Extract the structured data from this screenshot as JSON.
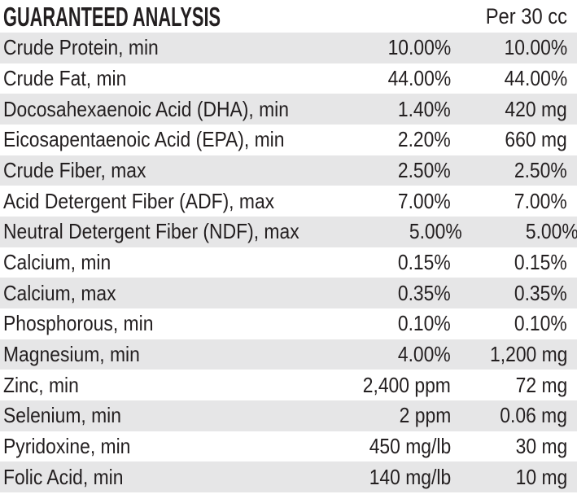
{
  "header": {
    "title": "GUARANTEED ANALYSIS",
    "per_unit_label": "Per 30 cc"
  },
  "colors": {
    "background": "#ffffff",
    "stripe": "#e6e6e7",
    "text": "#231f20"
  },
  "table": {
    "rows": [
      {
        "label": "Crude Protein, min",
        "amount": "10.00%",
        "per30cc": "10.00%"
      },
      {
        "label": "Crude Fat, min",
        "amount": "44.00%",
        "per30cc": "44.00%"
      },
      {
        "label": "Docosahexaenoic Acid (DHA), min",
        "amount": "1.40%",
        "per30cc": "420 mg"
      },
      {
        "label": "Eicosapentaenoic Acid (EPA), min",
        "amount": "2.20%",
        "per30cc": "660 mg"
      },
      {
        "label": "Crude Fiber, max",
        "amount": "2.50%",
        "per30cc": "2.50%"
      },
      {
        "label": "Acid Detergent Fiber (ADF), max",
        "amount": "7.00%",
        "per30cc": "7.00%"
      },
      {
        "label": "Neutral Detergent Fiber (NDF), max",
        "amount": "5.00%",
        "per30cc": "5.00%"
      },
      {
        "label": "Calcium, min",
        "amount": "0.15%",
        "per30cc": "0.15%"
      },
      {
        "label": "Calcium, max",
        "amount": "0.35%",
        "per30cc": "0.35%"
      },
      {
        "label": "Phosphorous, min",
        "amount": "0.10%",
        "per30cc": "0.10%"
      },
      {
        "label": "Magnesium, min",
        "amount": "4.00%",
        "per30cc": "1,200 mg"
      },
      {
        "label": "Zinc, min",
        "amount": "2,400 ppm",
        "per30cc": "72 mg"
      },
      {
        "label": "Selenium, min",
        "amount": "2 ppm",
        "per30cc": "0.06 mg"
      },
      {
        "label": "Pyridoxine, min",
        "amount": "450 mg/lb",
        "per30cc": "30 mg"
      },
      {
        "label": "Folic Acid, min",
        "amount": "140 mg/lb",
        "per30cc": "10 mg"
      }
    ]
  }
}
